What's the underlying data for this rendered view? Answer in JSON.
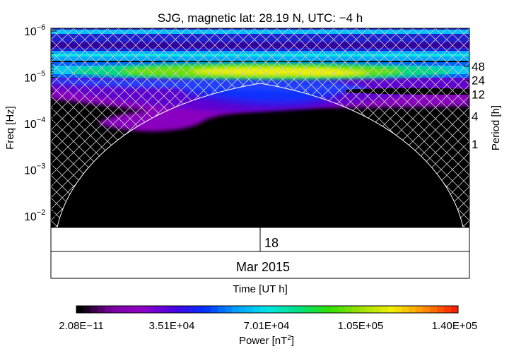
{
  "chart_data": {
    "type": "heatmap",
    "title": "SJG, magnetic lat:   28.19 N, UTC:  −4 h",
    "ylabel": "Freq [Hz]",
    "y2label": "Period [h]",
    "xlabel": "Time [UT h]",
    "y_scale": "log",
    "y_axis_inverted": true,
    "ylim": [
      1e-06,
      0.02
    ],
    "y_ticks": [
      {
        "label": "10",
        "exp": "−6",
        "value": 1e-06
      },
      {
        "label": "10",
        "exp": "−5",
        "value": 1e-05
      },
      {
        "label": "10",
        "exp": "−4",
        "value": 0.0001
      },
      {
        "label": "10",
        "exp": "−3",
        "value": 0.001
      },
      {
        "label": "10",
        "exp": "−2",
        "value": 0.01
      }
    ],
    "period_ticks": [
      {
        "label": "48",
        "hours": 48
      },
      {
        "label": "24",
        "hours": 24
      },
      {
        "label": "12",
        "hours": 12
      },
      {
        "label": "4",
        "hours": 4
      },
      {
        "label": "1",
        "hours": 1
      }
    ],
    "x_ticks": [
      {
        "label": "18"
      }
    ],
    "month_label": "Mar 2015",
    "colorbar": {
      "label": "Power [nT",
      "label_sup": "2",
      "label_end": "]",
      "min": 2.08e-11,
      "max": 140000,
      "tick_labels": [
        "2.08E−11",
        "3.51E+04",
        "7.01E+04",
        "1.05E+05",
        "1.40E+05"
      ]
    },
    "features": [
      {
        "name": "24h band",
        "period_hours": 24,
        "approx_power": 110000
      },
      {
        "name": "12h band",
        "period_hours": 12,
        "approx_power": 45000
      },
      {
        "name": "48h band",
        "period_hours": 48,
        "approx_power": 60000
      }
    ]
  },
  "colors": {
    "background": "#000000",
    "cone_of_influence": "#ffffff",
    "colormap": [
      "#000000",
      "#7a00a0",
      "#9000c8",
      "#4a00e0",
      "#0030ff",
      "#00a0ff",
      "#00e6e6",
      "#00e080",
      "#30e000",
      "#a0e000",
      "#f0f000",
      "#ff9000",
      "#ff2000"
    ]
  }
}
